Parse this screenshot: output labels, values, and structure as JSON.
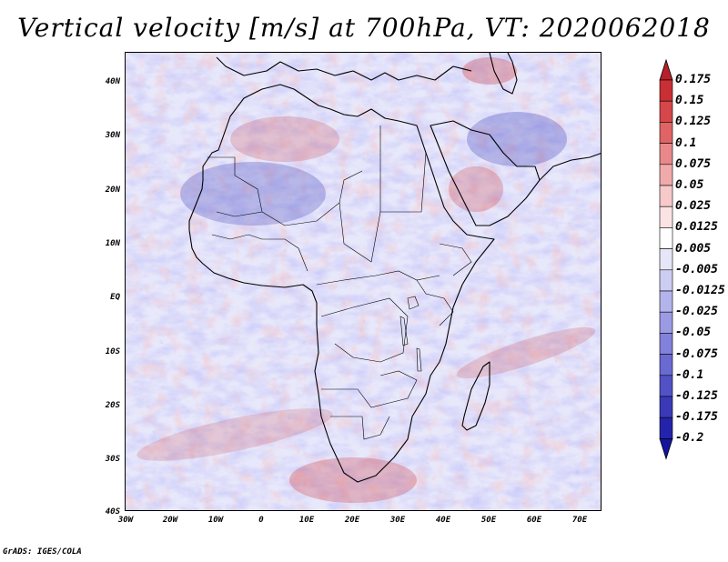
{
  "title": "Vertical velocity [m/s] at 700hPa, VT: 2020062018",
  "map": {
    "lon_range": [
      -30,
      75
    ],
    "lat_range": [
      -40,
      45
    ],
    "lon_ticks": [
      "30W",
      "20W",
      "10W",
      "0",
      "10E",
      "20E",
      "30E",
      "40E",
      "50E",
      "60E",
      "70E"
    ],
    "lat_ticks": [
      "40N",
      "30N",
      "20N",
      "10N",
      "EQ",
      "10S",
      "20S",
      "30S",
      "40S"
    ]
  },
  "colorbar": {
    "labels": [
      "0.175",
      "0.15",
      "0.125",
      "0.1",
      "0.075",
      "0.05",
      "0.025",
      "0.0125",
      "0.005",
      "-0.005",
      "-0.0125",
      "-0.025",
      "-0.05",
      "-0.075",
      "-0.1",
      "-0.125",
      "-0.175",
      "-0.2"
    ],
    "colors": [
      "#b7202a",
      "#c83035",
      "#d5474a",
      "#e06466",
      "#e8888a",
      "#f0aaab",
      "#f6c9ca",
      "#fbe3e4",
      "#ffffff",
      "#e6e6f8",
      "#cdcdf2",
      "#b4b4ec",
      "#9b9be4",
      "#8282dc",
      "#6a6ad2",
      "#5252c6",
      "#3a3ab8",
      "#2424aa",
      "#1414a0"
    ]
  },
  "credit": "GrADS: IGES/COLA"
}
